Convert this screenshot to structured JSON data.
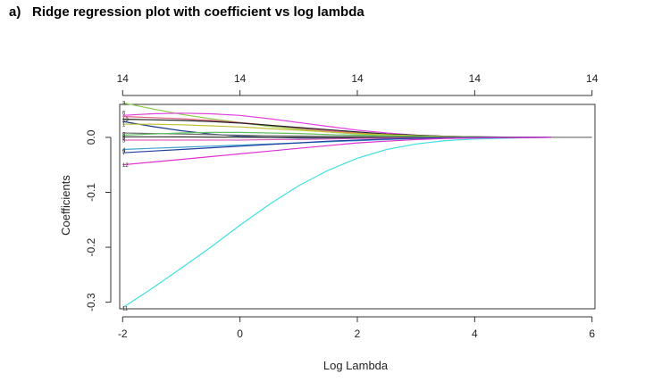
{
  "heading": {
    "label": "a)",
    "title": "Ridge regression plot with coefficient vs log lambda"
  },
  "chart_data": {
    "type": "line",
    "xlabel": "Log Lambda",
    "ylabel": "Coefficients",
    "xlim": [
      -2.05,
      6.05
    ],
    "ylim": [
      -0.312,
      0.06
    ],
    "xticks": [
      -2,
      0,
      2,
      4,
      6
    ],
    "yticks": [
      0.0,
      -0.1,
      -0.2,
      -0.3
    ],
    "top_axis_ticks": [
      -2,
      0,
      2,
      4,
      6
    ],
    "top_axis_labels": [
      "14",
      "14",
      "14",
      "14",
      "14"
    ],
    "grid": false,
    "path_labels": [
      {
        "label": "3",
        "y": 0.063
      },
      {
        "label": "6",
        "y": 0.045
      },
      {
        "label": "13",
        "y": 0.033
      },
      {
        "label": "1",
        "y": 0.024
      },
      {
        "label": "8",
        "y": 0.006
      },
      {
        "label": "9",
        "y": 0.0
      },
      {
        "label": "5",
        "y": -0.005
      },
      {
        "label": "4",
        "y": -0.022
      },
      {
        "label": "7",
        "y": -0.028
      },
      {
        "label": "12",
        "y": -0.05
      },
      {
        "label": "11",
        "y": -0.31
      }
    ],
    "x": [
      -2,
      -1.5,
      -1,
      -0.5,
      0,
      0.5,
      1,
      1.5,
      2,
      2.5,
      3,
      3.5,
      4,
      4.5,
      5,
      5.3
    ],
    "series": [
      {
        "color": "#40e0e0",
        "values": [
          -0.31,
          -0.275,
          -0.238,
          -0.2,
          -0.16,
          -0.122,
          -0.088,
          -0.06,
          -0.038,
          -0.022,
          -0.012,
          -0.006,
          -0.003,
          -0.0015,
          -0.0005,
          0.0
        ]
      },
      {
        "color": "#90d050",
        "values": [
          0.063,
          0.052,
          0.042,
          0.034,
          0.027,
          0.02,
          0.015,
          0.01,
          0.006,
          0.004,
          0.002,
          0.001,
          0.0005,
          0.0002,
          0.0001,
          0.0
        ]
      },
      {
        "color": "#e040e0",
        "values": [
          0.04,
          0.043,
          0.044,
          0.043,
          0.04,
          0.034,
          0.027,
          0.02,
          0.013,
          0.008,
          0.004,
          0.002,
          0.001,
          0.0005,
          0.0002,
          0.0
        ]
      },
      {
        "color": "#e06080",
        "values": [
          0.038,
          0.036,
          0.034,
          0.031,
          0.027,
          0.022,
          0.017,
          0.012,
          0.008,
          0.005,
          0.003,
          0.0015,
          0.0007,
          0.0003,
          0.0001,
          0.0
        ]
      },
      {
        "color": "#202020",
        "values": [
          0.033,
          0.032,
          0.031,
          0.029,
          0.026,
          0.022,
          0.018,
          0.014,
          0.01,
          0.006,
          0.004,
          0.002,
          0.001,
          0.0005,
          0.0002,
          0.0
        ]
      },
      {
        "color": "#1a3a8a",
        "values": [
          0.029,
          0.02,
          0.012,
          0.006,
          0.002,
          0.0,
          -0.001,
          -0.001,
          -0.001,
          -0.0008,
          -0.0005,
          -0.0003,
          -0.0002,
          -0.0001,
          0.0,
          0.0
        ]
      },
      {
        "color": "#c0c030",
        "values": [
          0.024,
          0.024,
          0.023,
          0.021,
          0.019,
          0.016,
          0.013,
          0.01,
          0.007,
          0.005,
          0.003,
          0.0015,
          0.0007,
          0.0003,
          0.0001,
          0.0
        ]
      },
      {
        "color": "#707070",
        "values": [
          0.008,
          0.007,
          0.006,
          0.005,
          0.004,
          0.003,
          0.0025,
          0.002,
          0.0015,
          0.001,
          0.0006,
          0.0003,
          0.0002,
          0.0001,
          0.0,
          0.0
        ]
      },
      {
        "color": "#60c060",
        "values": [
          0.004,
          0.006,
          0.008,
          0.009,
          0.009,
          0.008,
          0.007,
          0.005,
          0.004,
          0.003,
          0.002,
          0.001,
          0.0005,
          0.0002,
          0.0001,
          0.0
        ]
      },
      {
        "color": "#303030",
        "values": [
          0.001,
          0.001,
          0.0008,
          0.0005,
          0.0003,
          0.0001,
          0.0,
          -0.0002,
          -0.0003,
          -0.0003,
          -0.0002,
          -0.0001,
          0.0,
          0.0,
          0.0,
          0.0
        ]
      },
      {
        "color": "#e060c0",
        "values": [
          -0.005,
          -0.005,
          -0.005,
          -0.005,
          -0.005,
          -0.004,
          -0.004,
          -0.003,
          -0.002,
          -0.0015,
          -0.001,
          -0.0005,
          -0.0002,
          -0.0001,
          0.0,
          0.0
        ]
      },
      {
        "color": "#40a0d0",
        "values": [
          -0.022,
          -0.02,
          -0.018,
          -0.016,
          -0.014,
          -0.012,
          -0.01,
          -0.008,
          -0.006,
          -0.004,
          -0.002,
          -0.001,
          -0.0005,
          -0.0002,
          -0.0001,
          0.0
        ]
      },
      {
        "color": "#2040a0",
        "values": [
          -0.028,
          -0.025,
          -0.022,
          -0.019,
          -0.016,
          -0.013,
          -0.01,
          -0.007,
          -0.005,
          -0.003,
          -0.0018,
          -0.001,
          -0.0005,
          -0.0002,
          -0.0001,
          0.0
        ]
      },
      {
        "color": "#e030d0",
        "values": [
          -0.05,
          -0.045,
          -0.04,
          -0.035,
          -0.03,
          -0.025,
          -0.02,
          -0.015,
          -0.01,
          -0.007,
          -0.004,
          -0.002,
          -0.001,
          -0.0005,
          -0.0002,
          0.0
        ]
      }
    ]
  }
}
